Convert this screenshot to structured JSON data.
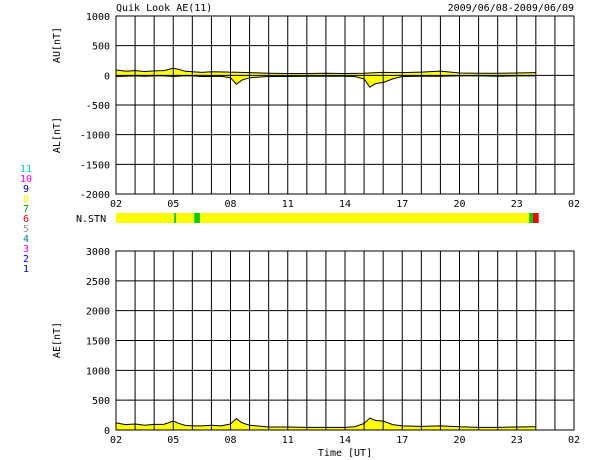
{
  "header": {
    "title": "Quik Look AE(11)",
    "date_range": "2009/06/08-2009/06/09"
  },
  "colors": {
    "fill": "#ffff00",
    "grid": "#000000",
    "station_scale": [
      "#0000ff",
      "#ff0000",
      "#ff00ff",
      "#00aaaa",
      "#00cc00",
      "#aaaaaa",
      "#ff0000",
      "#00ff00",
      "#ffff00",
      "#0000aa",
      "#ff00ff",
      "#00ffff"
    ]
  },
  "station_scale": {
    "labels": [
      "1",
      "2",
      "3",
      "4",
      "5",
      "6",
      "7",
      "8",
      "9",
      "10",
      "11"
    ],
    "colors": [
      "#000099",
      "#0000ff",
      "#ff00ff",
      "#008888",
      "#999999",
      "#ff0000",
      "#00aa00",
      "#ffff00",
      "#000099",
      "#ff00ff",
      "#00cccc"
    ]
  },
  "x_ticks": [
    "02",
    "05",
    "08",
    "11",
    "14",
    "17",
    "20",
    "23",
    "02"
  ],
  "xlabel": "Time [UT]",
  "nstn": {
    "label": "N.STN",
    "segments": [
      {
        "from": 0,
        "to": 3.05,
        "color": "#ffff00"
      },
      {
        "from": 3.05,
        "to": 3.15,
        "color": "#00cc00"
      },
      {
        "from": 3.15,
        "to": 4.1,
        "color": "#ffff00"
      },
      {
        "from": 4.1,
        "to": 4.4,
        "color": "#00cc00"
      },
      {
        "from": 4.4,
        "to": 21.65,
        "color": "#ffff00"
      },
      {
        "from": 21.65,
        "to": 21.85,
        "color": "#00cc00"
      },
      {
        "from": 21.85,
        "to": 22.15,
        "color": "#ff0000"
      }
    ]
  },
  "chart_data": [
    {
      "type": "area",
      "ylabel_top": "AU[nT]",
      "ylabel_bottom": "AL[nT]",
      "xlim": [
        0,
        24
      ],
      "ylim": [
        -2000,
        1000
      ],
      "yticks": [
        "1000",
        "500",
        "0",
        "-500",
        "-1000",
        "-1500",
        "-2000"
      ],
      "series": [
        {
          "name": "AU",
          "x": [
            0,
            0.5,
            1,
            1.5,
            2,
            2.5,
            3,
            3.3,
            3.6,
            4,
            4.5,
            5,
            6,
            7,
            8,
            9,
            10,
            11,
            12,
            13,
            14,
            15,
            16,
            17,
            18,
            19,
            20,
            21,
            22
          ],
          "values": [
            90,
            70,
            80,
            65,
            75,
            80,
            120,
            100,
            70,
            60,
            50,
            60,
            55,
            45,
            35,
            30,
            30,
            35,
            30,
            35,
            50,
            45,
            55,
            70,
            40,
            35,
            35,
            40,
            45
          ]
        },
        {
          "name": "AL",
          "x": [
            0,
            0.5,
            1,
            1.5,
            2,
            2.5,
            3,
            3.5,
            4,
            4.5,
            5,
            5.5,
            6,
            6.3,
            6.6,
            7,
            8,
            9,
            10,
            11,
            12,
            12.5,
            13,
            13.3,
            13.6,
            14,
            14.5,
            15,
            16,
            17,
            18,
            19,
            20,
            21,
            22
          ],
          "values": [
            -20,
            -15,
            -10,
            -15,
            -10,
            -10,
            -20,
            -10,
            -10,
            -20,
            -20,
            -15,
            -40,
            -150,
            -80,
            -40,
            -20,
            -20,
            -15,
            -15,
            -15,
            -20,
            -60,
            -200,
            -140,
            -120,
            -60,
            -20,
            -15,
            -15,
            -10,
            -10,
            -15,
            -10,
            -10
          ]
        }
      ]
    },
    {
      "type": "area",
      "ylabel": "AE[nT]",
      "xlim": [
        0,
        24
      ],
      "ylim": [
        0,
        3000
      ],
      "yticks": [
        "3000",
        "2500",
        "2000",
        "1500",
        "1000",
        "500",
        "0"
      ],
      "series": [
        {
          "name": "AE",
          "x": [
            0,
            0.5,
            1,
            1.5,
            2,
            2.5,
            3,
            3.3,
            3.6,
            4,
            4.5,
            5,
            5.5,
            6,
            6.3,
            6.6,
            7,
            8,
            9,
            10,
            11,
            12,
            12.5,
            13,
            13.3,
            13.6,
            14,
            14.5,
            15,
            16,
            17,
            18,
            19,
            20,
            21,
            22
          ],
          "values": [
            120,
            90,
            100,
            80,
            95,
            95,
            150,
            110,
            80,
            70,
            70,
            80,
            70,
            100,
            190,
            120,
            80,
            50,
            50,
            45,
            45,
            45,
            55,
            110,
            200,
            160,
            150,
            90,
            70,
            60,
            70,
            55,
            45,
            45,
            50,
            55
          ]
        }
      ]
    }
  ]
}
